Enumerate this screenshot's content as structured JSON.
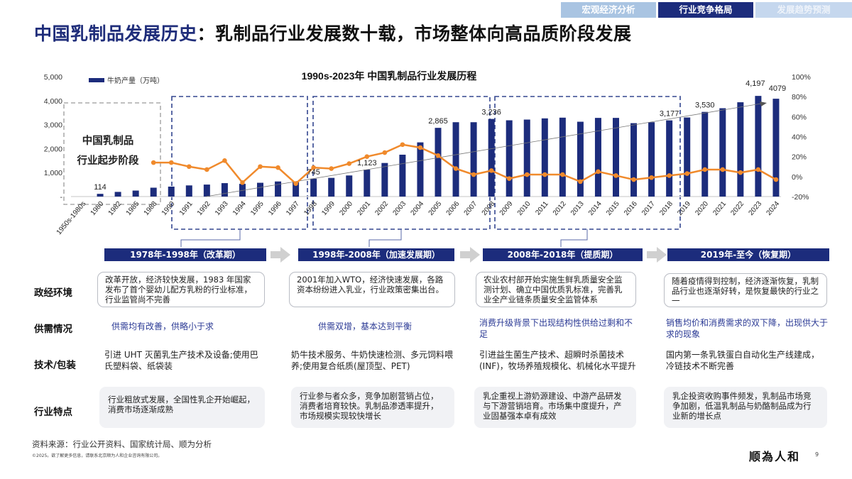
{
  "nav": {
    "tabs": [
      {
        "label": "宏观经济分析",
        "active": false,
        "color": "#a9c4e2"
      },
      {
        "label": "行业竞争格局",
        "active": true,
        "color": "#1c2c7c"
      },
      {
        "label": "发展趋势预测",
        "active": false,
        "color": "#c5d7ee"
      }
    ]
  },
  "title": {
    "part1": "中国乳制品发展历史",
    "part2": "：乳制品行业发展数十载，市场整体向高品质阶段发展"
  },
  "chart_data": {
    "type": "bar+line",
    "title": "1990s-2023年 中国乳制品行业发展历程",
    "categories": [
      "1950s-1980s",
      "1980",
      "1982",
      "1985",
      "1988",
      "1990",
      "1991",
      "1992",
      "1993",
      "1994",
      "1995",
      "1996",
      "1997",
      "1998",
      "1999",
      "2000",
      "2001",
      "2002",
      "2003",
      "2004",
      "2005",
      "2006",
      "2007",
      "2008",
      "2009",
      "2010",
      "2011",
      "2012",
      "2013",
      "2014",
      "2015",
      "2016",
      "2017",
      "2018",
      "2019",
      "2020",
      "2021",
      "2022",
      "2023",
      "2024"
    ],
    "series": [
      {
        "name": "牛奶产量（万吨）",
        "type": "bar",
        "axis": "left",
        "color": "#1c2c7c",
        "values": [
          null,
          114,
          195,
          250,
          370,
          415,
          465,
          500,
          560,
          530,
          575,
          630,
          600,
          745,
          780,
          880,
          1123,
          1400,
          1746,
          2260,
          2865,
          3100,
          3100,
          3236,
          3180,
          3210,
          3260,
          3290,
          3120,
          3280,
          3280,
          3060,
          3100,
          3177,
          3297,
          3530,
          3683,
          3932,
          4197,
          4079
        ],
        "data_labels": {
          "1980": "114",
          "1998": "745",
          "2001": "1,123",
          "2005": "2,865",
          "2008": "3,236",
          "2018": "3,177",
          "2020": "3,530",
          "2023": "4,197",
          "2024": "4079"
        }
      },
      {
        "type": "line",
        "axis": "right",
        "color": "#f08a2c",
        "values": [
          null,
          null,
          null,
          null,
          14,
          14,
          10,
          7,
          16,
          -6,
          10,
          9,
          -7,
          9,
          8,
          13,
          20,
          24,
          32,
          29,
          21,
          8,
          2,
          6,
          -2,
          2,
          2,
          2,
          -5,
          5,
          1,
          -3,
          -1,
          1,
          3,
          7,
          7,
          4,
          7,
          -3
        ]
      }
    ],
    "left_axis": {
      "ticks": [
        "-",
        "1,000",
        "2,000",
        "3,000",
        "4,000",
        "5,000"
      ],
      "ylim": [
        0,
        5000
      ]
    },
    "right_axis": {
      "ticks": [
        "-20%",
        "0%",
        "20%",
        "40%",
        "60%",
        "80%",
        "100%"
      ],
      "ylim": [
        -20,
        100
      ]
    },
    "trend_arrow": true,
    "annotation": "中国乳制品\n行业起步阶段",
    "annotation_lines": [
      "中国乳制品",
      "行业起步阶段"
    ],
    "legend_position": "top-left"
  },
  "periods": [
    {
      "header": "1978年-1998年（改革期）"
    },
    {
      "header": "1998年-2008年（加速发展期）"
    },
    {
      "header": "2008年-2018年（提质期）"
    },
    {
      "header": "2019年-至今（恢复期）"
    }
  ],
  "rows": {
    "labels": [
      "政经环境",
      "供需情况",
      "技术/包装",
      "行业特点"
    ],
    "policy": [
      "改革开放，经济较快发展，1983 年国家发布了首个婴幼儿配方乳粉的行业标准，行业监管尚不完善",
      "2001年加入WTO，经济快速发展，各路资本纷纷进入乳业，行业政策密集出台。",
      "农业农村部开始实施生鲜乳质量安全监测计划、确立中国优质乳标准，完善乳业全产业链条质量安全监管体系",
      "随着疫情得到控制，经济逐渐恢复，乳制品行业也逐渐好转，是恢复最快的行业之一"
    ],
    "supply": [
      "供需均有改善，供略小于求",
      "供需双增，基本达到平衡",
      "消费升级背景下出现结构性供给过剩和不足",
      "销售均价和消费需求的双下降，出现供大于求的现象"
    ],
    "tech": [
      "引进 UHT 灭菌乳生产技术及设备;使用巴氏塑料袋、纸袋装",
      "奶牛技术服务、牛奶快速检测、多元饲料喂养;使用复合纸质(屋顶型、PET)",
      "引进益生菌生产技术、超瞬时杀菌技术(INF)，牧场养殖规模化、机械化水平提升",
      "国内第一条乳铁蛋白自动化生产线建成，冷链技术不断完善"
    ],
    "features": [
      "行业粗放式发展，全国性乳企开始崛起，消费市场逐渐成熟",
      "行业参与者众多，竞争加剧营销占位，消费者培育较快。乳制品渗透率提升，市场规模实现较快增长",
      "乳企重视上游奶源建设、中游产品研发与下游营销培育。市场集中度提升，产业固基强本卓有成效",
      "乳企投资收购事件频发，乳制品市场竞争加剧，低温乳制品与奶酪制品成为行业新的增长点"
    ]
  },
  "footer": {
    "source": "资料来源：行业公开资料、国家统计局、顺为分析",
    "copyright": "©2025。欲了解更多信息，请联系北京顺为人和企业咨询有限公司。",
    "logo_text": "顺為人和",
    "page": "9"
  }
}
